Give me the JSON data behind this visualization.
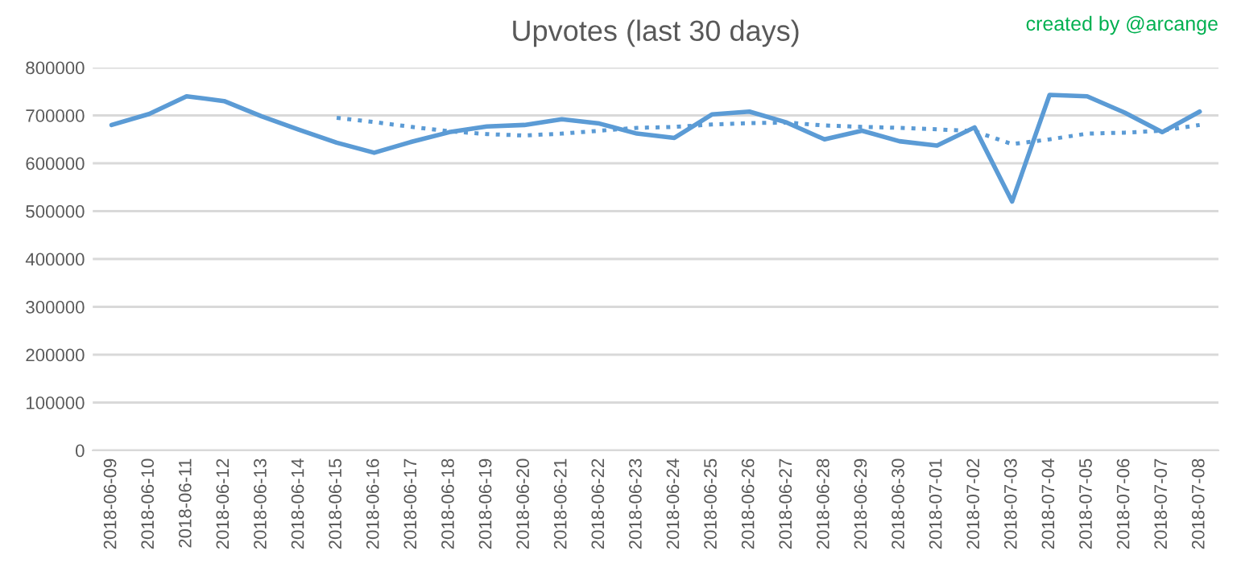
{
  "chart_data": {
    "type": "line",
    "title": "Upvotes (last 30 days)",
    "annotations": [
      "created by @arcange"
    ],
    "categories": [
      "2018-06-09",
      "2018-06-10",
      "2018-06-11",
      "2018-06-12",
      "2018-06-13",
      "2018-06-14",
      "2018-06-15",
      "2018-06-16",
      "2018-06-17",
      "2018-06-18",
      "2018-06-19",
      "2018-06-20",
      "2018-06-21",
      "2018-06-22",
      "2018-06-23",
      "2018-06-24",
      "2018-06-25",
      "2018-06-26",
      "2018-06-27",
      "2018-06-28",
      "2018-06-29",
      "2018-06-30",
      "2018-07-01",
      "2018-07-02",
      "2018-07-03",
      "2018-07-04",
      "2018-07-05",
      "2018-07-06",
      "2018-07-07",
      "2018-07-08"
    ],
    "series": [
      {
        "color": "#5b9bd5",
        "line_style": "solid",
        "values": [
          680000,
          703000,
          740000,
          730000,
          698000,
          670000,
          643000,
          622000,
          645000,
          665000,
          677000,
          680000,
          692000,
          683000,
          662000,
          653000,
          702000,
          708000,
          685000,
          650000,
          668000,
          646000,
          637000,
          675000,
          520000,
          743000,
          740000,
          706000,
          665000,
          708000
        ]
      },
      {
        "color": "#5b9bd5",
        "line_style": "dotted",
        "values": [
          null,
          null,
          null,
          null,
          null,
          null,
          695000,
          686000,
          676000,
          667000,
          661000,
          658000,
          662000,
          668000,
          674000,
          676000,
          681000,
          684000,
          685000,
          679000,
          676000,
          674000,
          671000,
          667000,
          640000,
          650000,
          662000,
          664000,
          668000,
          680000
        ]
      }
    ],
    "ylim": [
      0,
      800000
    ],
    "yticks": [
      0,
      100000,
      200000,
      300000,
      400000,
      500000,
      600000,
      700000,
      800000
    ],
    "grid": "y",
    "legend": false,
    "marker": "none"
  }
}
